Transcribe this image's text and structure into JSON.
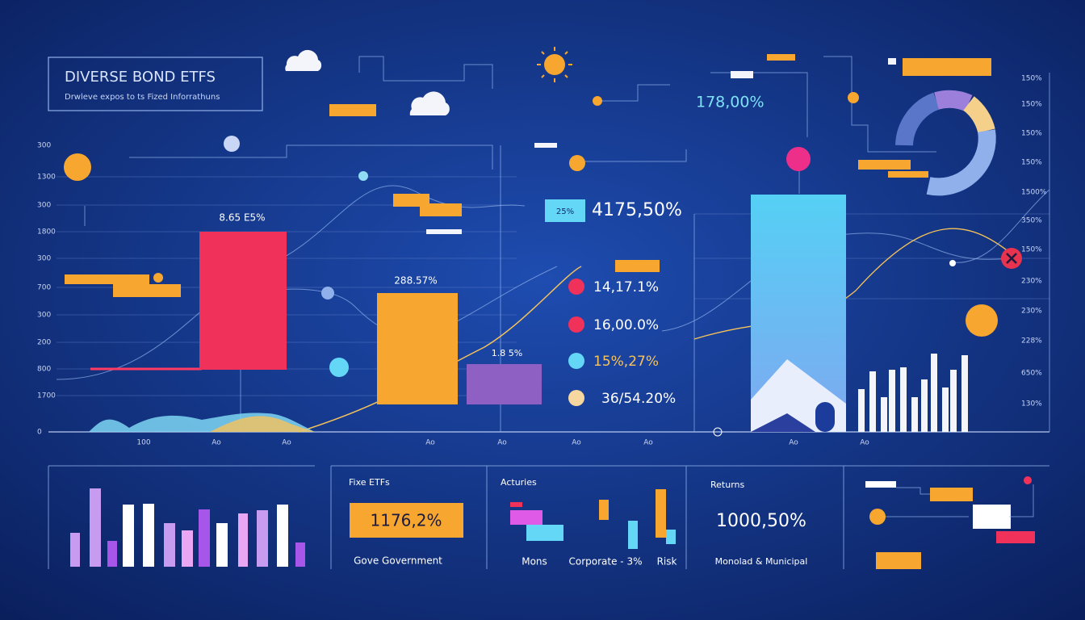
{
  "header": {
    "title": "DIVERSE BOND ETFS",
    "subtitle": "Drwleve expos to ts Fized Inforrathuns"
  },
  "main_chart": {
    "left_axis": [
      "300",
      "1300",
      "300",
      "1800",
      "300",
      "700",
      "300",
      "200",
      "800",
      "1700",
      "0"
    ],
    "right_axis": [
      "150%",
      "150%",
      "150%",
      "150%",
      "1500%",
      "350%",
      "150%",
      "230%",
      "230%",
      "228%",
      "650%",
      "130%"
    ],
    "x_axis": [
      "100",
      "Ao",
      "Ao",
      "Ao",
      "Ao",
      "Ao",
      "Ao",
      "Ao",
      "Ao"
    ],
    "bar_labels": [
      "8.65 E5%",
      "288.57%",
      "1.8 5%"
    ],
    "callouts": [
      "178,00%",
      "25%",
      "4175,50%"
    ],
    "legend": [
      "14,17.1%",
      "16,00.0%",
      "15%,27%",
      "36/54.20%"
    ]
  },
  "panels": [
    {
      "title": "Fixe ETFs",
      "value": "1176,2%",
      "caption": "Gove Government"
    },
    {
      "title": "Acturies",
      "captions": [
        "Mons",
        "Corporate - 3%",
        "Risk"
      ]
    },
    {
      "title": "Returns",
      "value": "1000,50%",
      "caption": "Monolad & Municipal"
    }
  ]
}
